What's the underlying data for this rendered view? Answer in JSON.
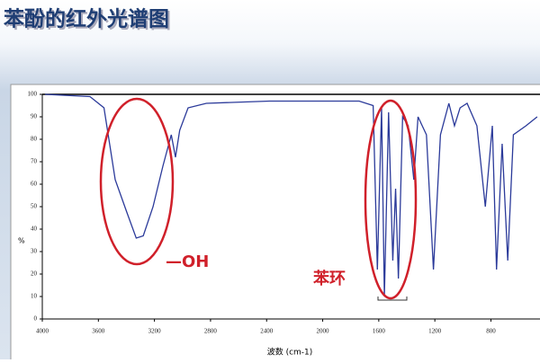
{
  "chart_data": {
    "type": "line",
    "title": "苯酚的红外光谱图",
    "x_label": "波数 (cm-1)",
    "y_label": "%",
    "annotations": [
      "—OH",
      "苯环"
    ],
    "color": "#2b3a9a",
    "x": [
      3980,
      3660,
      3560,
      3530,
      3480,
      3400,
      3330,
      3280,
      3210,
      3140,
      3080,
      3050,
      3020,
      2960,
      2830,
      2380,
      1740,
      1640,
      1610,
      1580,
      1560,
      1530,
      1500,
      1480,
      1460,
      1430,
      1390,
      1350,
      1320,
      1260,
      1210,
      1160,
      1100,
      1060,
      1020,
      970,
      900,
      840,
      790,
      760,
      720,
      680,
      640,
      550,
      470
    ],
    "values": [
      100,
      99,
      94,
      82,
      62,
      48,
      36,
      37,
      50,
      68,
      82,
      72,
      84,
      94,
      96,
      97,
      97,
      95,
      22,
      94,
      10,
      92,
      26,
      58,
      18,
      90,
      86,
      62,
      90,
      82,
      22,
      82,
      96,
      86,
      94,
      96,
      86,
      50,
      86,
      22,
      78,
      26,
      82,
      86,
      90
    ],
    "xlim": [
      4000,
      450
    ],
    "ylim": [
      0,
      100
    ],
    "xticks": [
      4000,
      3600,
      3200,
      2800,
      2400,
      2000,
      1600,
      1200,
      800
    ],
    "yticks": [
      0,
      10,
      20,
      30,
      40,
      50,
      60,
      70,
      80,
      90,
      100
    ]
  }
}
